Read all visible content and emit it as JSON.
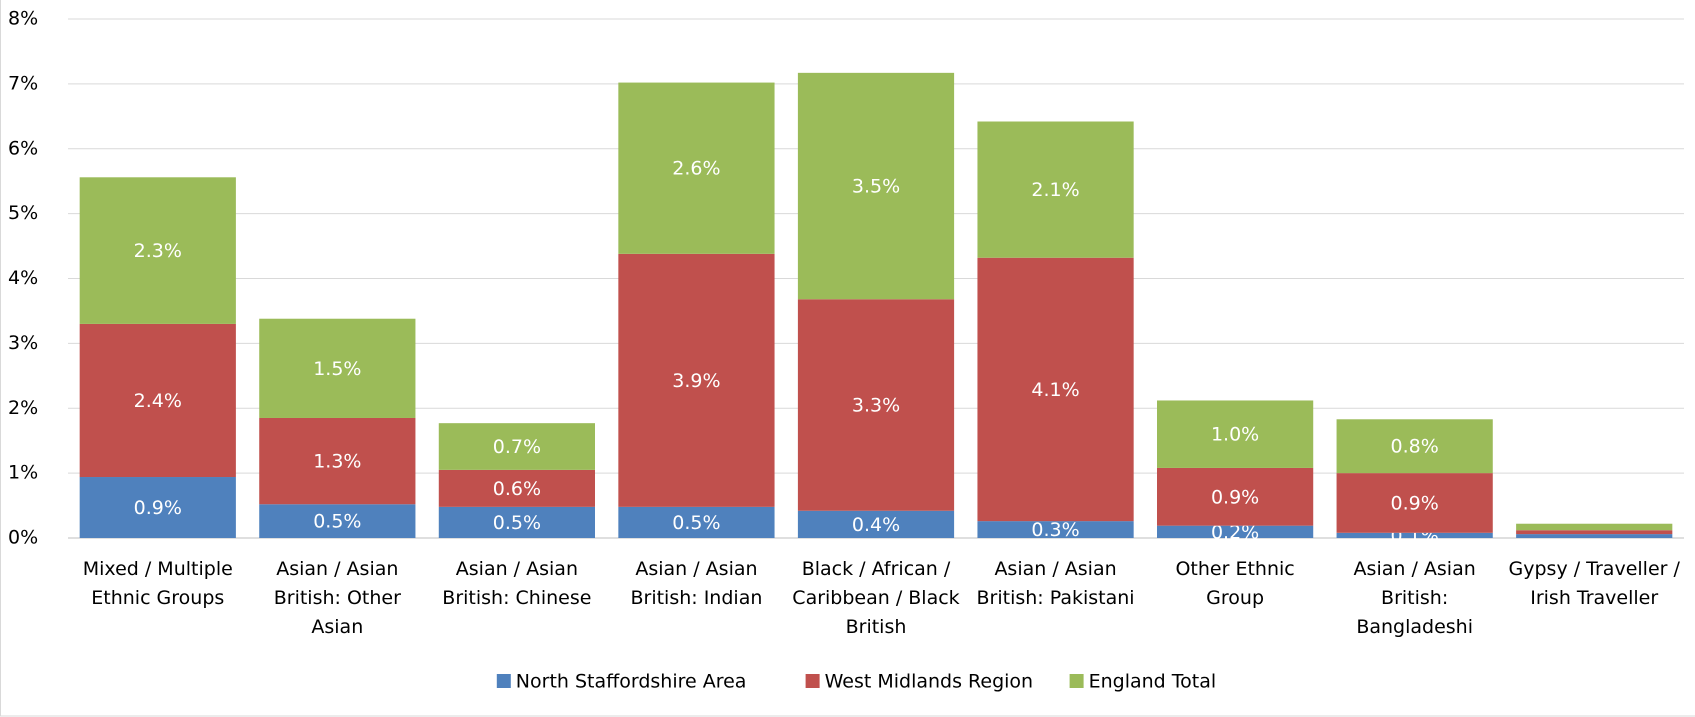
{
  "chart_data": {
    "type": "stacked_bar",
    "categories": [
      "Mixed / Multiple Ethnic Groups",
      "Asian / Asian British: Other Asian",
      "Asian / Asian British: Chinese",
      "Asian / Asian British: Indian",
      "Black / African / Caribbean / Black British",
      "Asian / Asian British: Pakistani",
      "Other Ethnic Group",
      "Asian / Asian British: Bangladeshi",
      "Gypsy / Traveller / Irish Traveller"
    ],
    "series": [
      {
        "name": "North Staffordshire Area",
        "color": "#4f81bd",
        "values": [
          0.94,
          0.52,
          0.48,
          0.48,
          0.42,
          0.26,
          0.19,
          0.08,
          0.06
        ],
        "value_labels": [
          "0.9%",
          "0.5%",
          "0.5%",
          "0.5%",
          "0.4%",
          "0.3%",
          "0.2%",
          "0.1%",
          null
        ]
      },
      {
        "name": "West Midlands Region",
        "color": "#c0504d",
        "values": [
          2.36,
          1.33,
          0.57,
          3.9,
          3.26,
          4.06,
          0.89,
          0.92,
          0.06
        ],
        "value_labels": [
          "2.4%",
          "1.3%",
          "0.6%",
          "3.9%",
          "3.3%",
          "4.1%",
          "0.9%",
          "0.9%",
          null
        ]
      },
      {
        "name": "England Total",
        "color": "#9bbb59",
        "values": [
          2.26,
          1.53,
          0.72,
          2.64,
          3.49,
          2.1,
          1.04,
          0.83,
          0.1
        ],
        "value_labels": [
          "2.3%",
          "1.5%",
          "0.7%",
          "2.6%",
          "3.5%",
          "2.1%",
          "1.0%",
          "0.8%",
          null
        ]
      }
    ],
    "ylim": [
      0,
      8
    ],
    "yticks": [
      {
        "value": 0,
        "label": "0%"
      },
      {
        "value": 1,
        "label": "1%"
      },
      {
        "value": 2,
        "label": "2%"
      },
      {
        "value": 3,
        "label": "3%"
      },
      {
        "value": 4,
        "label": "4%"
      },
      {
        "value": 5,
        "label": "5%"
      },
      {
        "value": 6,
        "label": "6%"
      },
      {
        "value": 7,
        "label": "7%"
      },
      {
        "value": 8,
        "label": "8%"
      }
    ],
    "grid": true,
    "legend": "bottom"
  }
}
